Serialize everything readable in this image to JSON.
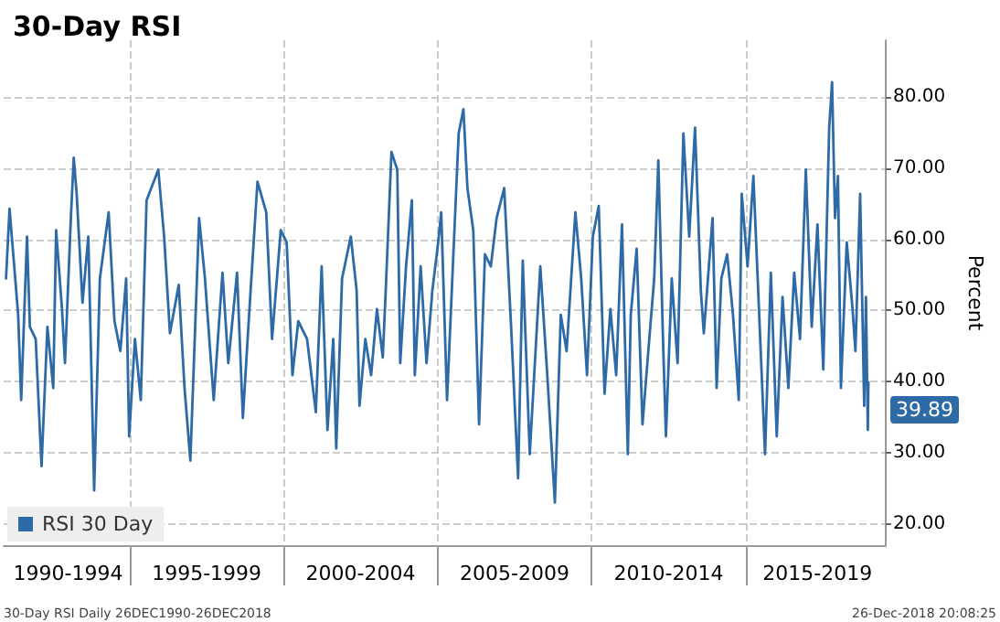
{
  "chart_data": {
    "type": "line",
    "title": "30-Day RSI",
    "ylabel": "Percent",
    "annotations": [
      "30-Day RSI Daily 26DEC1990-26DEC2018",
      "26-Dec-2018 20:08:25"
    ],
    "x": [
      "1990-12-26",
      "1991-02-06",
      "1991-05-19",
      "1991-06-24",
      "1991-09-01",
      "1991-10-05",
      "1991-12-13",
      "1992-02-20",
      "1992-04-30",
      "1992-07-08",
      "1992-08-11",
      "1992-10-20",
      "1992-11-24",
      "1993-02-02",
      "1993-03-08",
      "1993-04-12",
      "1993-06-20",
      "1993-08-28",
      "1993-11-05",
      "1994-01-12",
      "1994-04-26",
      "1994-07-04",
      "1994-09-12",
      "1994-11-20",
      "1994-12-25",
      "1995-03-04",
      "1995-05-12",
      "1995-07-20",
      "1995-12-06",
      "1996-02-13",
      "1996-04-22",
      "1996-08-04",
      "1996-10-12",
      "1996-12-20",
      "1997-04-03",
      "1997-06-11",
      "1997-09-23",
      "1998-01-05",
      "1998-03-15",
      "1998-06-27",
      "1998-09-04",
      "1998-11-12",
      "1999-02-24",
      "1999-06-08",
      "1999-08-16",
      "1999-11-27",
      "2000-02-05",
      "2000-04-14",
      "2000-06-22",
      "2000-10-04",
      "2001-01-16",
      "2001-03-26",
      "2001-06-03",
      "2001-08-11",
      "2001-09-15",
      "2001-11-23",
      "2002-03-07",
      "2002-05-15",
      "2002-06-18",
      "2002-08-26",
      "2002-11-03",
      "2003-01-11",
      "2003-03-21",
      "2003-04-25",
      "2003-07-02",
      "2003-09-09",
      "2003-10-14",
      "2003-12-22",
      "2004-02-29",
      "2004-04-04",
      "2004-06-12",
      "2004-08-21",
      "2004-10-29",
      "2005-01-06",
      "2005-02-11",
      "2005-04-21",
      "2005-06-29",
      "2005-09-06",
      "2005-11-01",
      "2005-12-19",
      "2006-02-26",
      "2006-05-06",
      "2006-07-15",
      "2006-09-22",
      "2006-11-30",
      "2007-02-28",
      "2007-05-21",
      "2007-08-12",
      "2007-10-06",
      "2007-12-28",
      "2008-05-01",
      "2008-07-23",
      "2008-10-21",
      "2008-12-30",
      "2009-03-09",
      "2009-06-21",
      "2009-08-29",
      "2009-11-06",
      "2010-01-14",
      "2010-03-25",
      "2010-06-02",
      "2010-08-10",
      "2010-10-18",
      "2010-12-26",
      "2011-03-05",
      "2011-04-09",
      "2011-06-18",
      "2011-08-26",
      "2011-11-03",
      "2012-01-12",
      "2012-03-01",
      "2012-04-25",
      "2012-05-30",
      "2012-08-07",
      "2012-10-15",
      "2012-12-23",
      "2013-03-02",
      "2013-05-10",
      "2013-07-18",
      "2013-08-22",
      "2013-12-04",
      "2014-01-21",
      "2014-03-18",
      "2014-05-26",
      "2014-08-03",
      "2014-10-11",
      "2014-11-15",
      "2015-01-23",
      "2015-04-02",
      "2015-06-10",
      "2015-08-18",
      "2015-10-26",
      "2016-01-04",
      "2016-03-13",
      "2016-05-21",
      "2016-07-29",
      "2016-10-06",
      "2016-12-14",
      "2017-02-22",
      "2017-05-01",
      "2017-07-09",
      "2017-09-17",
      "2017-10-21",
      "2017-11-25",
      "2017-12-30",
      "2018-02-03",
      "2018-04-13",
      "2018-06-21",
      "2018-07-25",
      "2018-09-19",
      "2018-11-06",
      "2018-11-27",
      "2018-12-19",
      "2018-12-26"
    ],
    "series": [
      {
        "name": "RSI 30 Day",
        "color": "#2e6aa6",
        "values": [
          54.5,
          64.3,
          49.4,
          37.4,
          60.4,
          47.7,
          46.0,
          28.1,
          47.7,
          39.1,
          61.3,
          50.2,
          42.6,
          63.0,
          71.5,
          66.4,
          51.1,
          60.4,
          24.7,
          54.5,
          63.8,
          48.5,
          44.3,
          54.5,
          32.3,
          46.0,
          37.4,
          65.5,
          69.8,
          60.4,
          46.8,
          53.6,
          39.1,
          28.9,
          63.0,
          54.5,
          37.4,
          55.3,
          42.6,
          55.3,
          34.9,
          48.5,
          68.1,
          63.8,
          46.0,
          61.3,
          59.6,
          40.9,
          48.5,
          46.0,
          35.7,
          56.2,
          33.2,
          46.0,
          30.6,
          54.5,
          60.4,
          52.8,
          36.6,
          46.0,
          40.9,
          50.2,
          43.4,
          52.8,
          72.3,
          69.8,
          42.6,
          56.2,
          65.5,
          40.9,
          56.2,
          42.6,
          52.8,
          59.6,
          63.8,
          37.4,
          56.2,
          74.9,
          78.3,
          67.2,
          61.3,
          34.0,
          57.9,
          56.2,
          63.0,
          67.2,
          47.7,
          26.4,
          57.0,
          29.8,
          56.2,
          40.9,
          23.0,
          49.4,
          44.3,
          63.8,
          54.5,
          40.9,
          60.4,
          64.7,
          38.3,
          50.2,
          40.9,
          62.1,
          29.8,
          49.4,
          58.7,
          34.0,
          44.3,
          54.5,
          71.1,
          46.0,
          32.3,
          54.5,
          42.6,
          74.9,
          60.4,
          75.7,
          52.8,
          46.8,
          63.0,
          39.1,
          54.5,
          57.9,
          49.4,
          37.4,
          66.4,
          56.2,
          68.9,
          49.4,
          29.8,
          55.3,
          32.3,
          51.9,
          39.1,
          55.3,
          46.0,
          69.8,
          47.7,
          62.1,
          41.7,
          75.7,
          82.1,
          63.0,
          68.9,
          39.1,
          59.6,
          50.2,
          44.3,
          66.4,
          36.6,
          51.9,
          33.2,
          39.89
        ],
        "value_labels": [
          null,
          null,
          null,
          null,
          null,
          null,
          null,
          null,
          null,
          null,
          null,
          null,
          null,
          null,
          null,
          null,
          null,
          null,
          null,
          null,
          null,
          null,
          null,
          null,
          null,
          null,
          null,
          null,
          null,
          null,
          null,
          null,
          null,
          null,
          null,
          null,
          null,
          null,
          null,
          null,
          null,
          null,
          null,
          null,
          null,
          null,
          null,
          null,
          null,
          null,
          null,
          null,
          null,
          null,
          null,
          null,
          null,
          null,
          null,
          null,
          null,
          null,
          null,
          null,
          null,
          null,
          null,
          null,
          null,
          null,
          null,
          null,
          null,
          null,
          null,
          null,
          null,
          null,
          null,
          null,
          null,
          null,
          null,
          null,
          null,
          null,
          null,
          null,
          null,
          null,
          null,
          null,
          null,
          null,
          null,
          null,
          null,
          null,
          null,
          null,
          null,
          null,
          null,
          null,
          null,
          null,
          null,
          null,
          null,
          null,
          null,
          null,
          null,
          null,
          null,
          null,
          null,
          null,
          null,
          null,
          null,
          null,
          null,
          null,
          null,
          null,
          null,
          null,
          null,
          null,
          null,
          null,
          null,
          null,
          null,
          null,
          null,
          null,
          null,
          null,
          null,
          null,
          null,
          null,
          null,
          null,
          null,
          null,
          null,
          null,
          null,
          null,
          null,
          "39.89"
        ]
      }
    ],
    "xlim": [
      "1990-11-28",
      "2019-07-19"
    ],
    "xticks": [
      {
        "value": "1993-01-01",
        "label": "1990-1994"
      },
      {
        "value": "1995-01-01",
        "label": null
      },
      {
        "value": "1997-07-02",
        "label": "1995-1999"
      },
      {
        "value": "2000-01-01",
        "label": null
      },
      {
        "value": "2002-07-02",
        "label": "2000-2004"
      },
      {
        "value": "2005-01-01",
        "label": null
      },
      {
        "value": "2007-07-02",
        "label": "2005-2009"
      },
      {
        "value": "2010-01-01",
        "label": null
      },
      {
        "value": "2012-07-02",
        "label": "2010-2014"
      },
      {
        "value": "2015-01-01",
        "label": null
      },
      {
        "value": "2017-05-01",
        "label": "2015-2019"
      }
    ],
    "ylim": [
      17,
      88
    ],
    "yticks": [
      {
        "value": 20,
        "label": "20.00"
      },
      {
        "value": 30,
        "label": "30.00"
      },
      {
        "value": 40,
        "label": "40.00"
      },
      {
        "value": 50,
        "label": "50.00"
      },
      {
        "value": 60,
        "label": "60.00"
      },
      {
        "value": 70,
        "label": "70.00"
      },
      {
        "value": 80,
        "label": "80.00"
      }
    ],
    "grid": true,
    "legend": "bottom left",
    "marker": "none",
    "line_style": "solid"
  }
}
